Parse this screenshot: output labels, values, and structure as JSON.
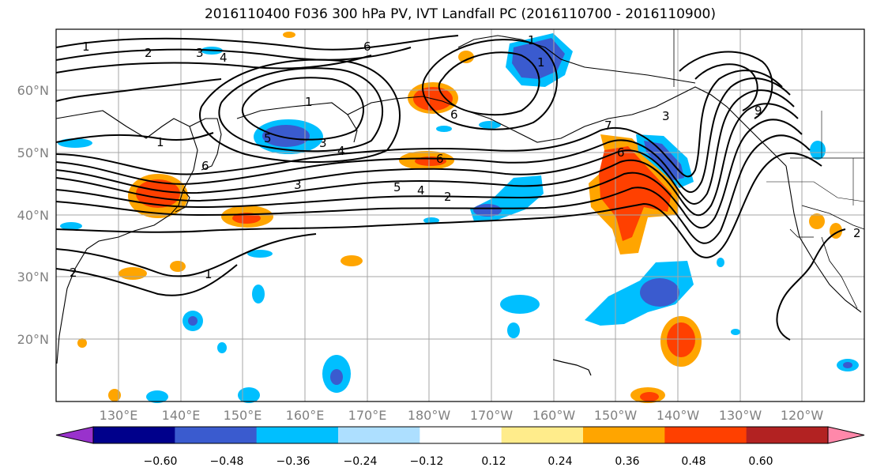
{
  "title": "2016110400 F036 300 hPa PV, IVT Landfall PC (2016110700 - 2016110900)",
  "lon_ticks": [
    "130°E",
    "140°E",
    "150°E",
    "160°E",
    "170°E",
    "180°W",
    "170°W",
    "160°W",
    "150°W",
    "140°W",
    "130°W",
    "120°W"
  ],
  "lat_ticks": [
    "60°N",
    "50°N",
    "40°N",
    "30°N",
    "20°N"
  ],
  "colorbar": {
    "colors": [
      "#9932CC",
      "#00008B",
      "#3A5BCF",
      "#00BFFF",
      "#ADDFFF",
      "#FFFFFF",
      "#FFEC8B",
      "#FFA500",
      "#FF4000",
      "#B22222",
      "#FF88AA"
    ],
    "tick_labels": [
      "−0.60",
      "−0.48",
      "−0.36",
      "−0.24",
      "−0.12",
      "0.12",
      "0.24",
      "0.36",
      "0.48",
      "0.60"
    ]
  },
  "contour_labels": [
    "1",
    "2",
    "3",
    "4",
    "6",
    "1",
    "5",
    "3",
    "4",
    "1",
    "6",
    "6",
    "3",
    "5",
    "4",
    "2",
    "6",
    "1",
    "7",
    "3",
    "9",
    "6",
    "1",
    "2",
    "1",
    "2"
  ]
}
